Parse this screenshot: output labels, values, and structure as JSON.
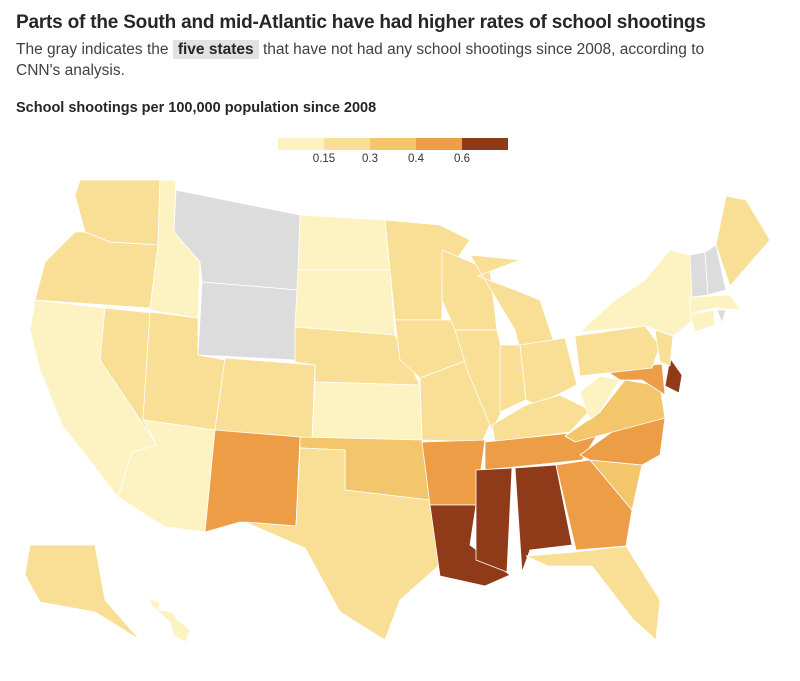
{
  "header": {
    "title": "Parts of the South and mid-Atlantic have had higher rates of school shootings",
    "subtitle_pre": "The gray indicates the",
    "subtitle_highlight": "five states",
    "subtitle_post": "that have not had any school shootings since 2008, according to CNN's analysis."
  },
  "chart_data": {
    "type": "choropleth",
    "title": "School shootings per 100,000 population since 2008",
    "legend": {
      "thresholds": [
        "0.15",
        "0.3",
        "0.4",
        "0.6"
      ],
      "colors": [
        "#fdf3c2",
        "#f8df95",
        "#f4c66b",
        "#ee9d47",
        "#8f3a18"
      ],
      "no_data_color": "#dcdcdc"
    },
    "state_bins": {
      "WA": 2,
      "OR": 2,
      "CA": 1,
      "NV": 2,
      "ID": 1,
      "MT": 0,
      "WY": 0,
      "UT": 2,
      "AZ": 1,
      "CO": 2,
      "NM": 4,
      "ND": 1,
      "SD": 1,
      "NE": 2,
      "KS": 1,
      "OK": 3,
      "TX": 2,
      "MN": 2,
      "IA": 2,
      "MO": 2,
      "AR": 4,
      "LA": 5,
      "WI": 2,
      "IL": 2,
      "MI": 2,
      "IN": 2,
      "OH": 2,
      "KY": 2,
      "TN": 4,
      "MS": 5,
      "AL": 5,
      "GA": 4,
      "FL": 2,
      "SC": 3,
      "NC": 4,
      "VA": 3,
      "WV": 1,
      "MD": 4,
      "DE": 5,
      "PA": 2,
      "NJ": 2,
      "NY": 1,
      "CT": 1,
      "RI": 0,
      "MA": 1,
      "VT": 0,
      "NH": 0,
      "ME": 2,
      "AK": 2,
      "HI": 1
    }
  }
}
